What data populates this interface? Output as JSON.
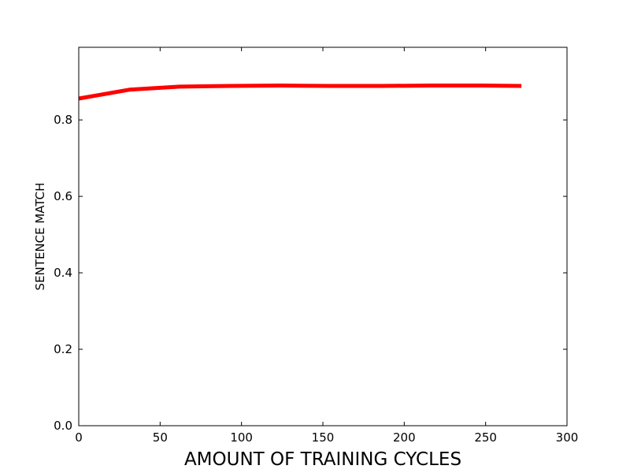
{
  "chart_data": {
    "type": "line",
    "title": "",
    "xlabel": "AMOUNT OF TRAINING CYCLES",
    "ylabel": "SENTENCE MATCH",
    "xlim": [
      0,
      300
    ],
    "ylim": [
      0.0,
      0.99
    ],
    "xticks": [
      0,
      50,
      100,
      150,
      200,
      250,
      300
    ],
    "xtick_labels": [
      "0",
      "50",
      "100",
      "150",
      "200",
      "250",
      "300"
    ],
    "yticks": [
      0.0,
      0.2,
      0.4,
      0.6,
      0.8
    ],
    "ytick_labels": [
      "0.0",
      "0.2",
      "0.4",
      "0.6",
      "0.8"
    ],
    "grid": false,
    "series": [
      {
        "color": "#ff0000",
        "x": [
          0,
          31,
          62,
          93,
          124,
          155,
          186,
          217,
          248,
          272
        ],
        "y": [
          0.856,
          0.879,
          0.887,
          0.889,
          0.89,
          0.889,
          0.889,
          0.89,
          0.89,
          0.889
        ]
      }
    ]
  }
}
